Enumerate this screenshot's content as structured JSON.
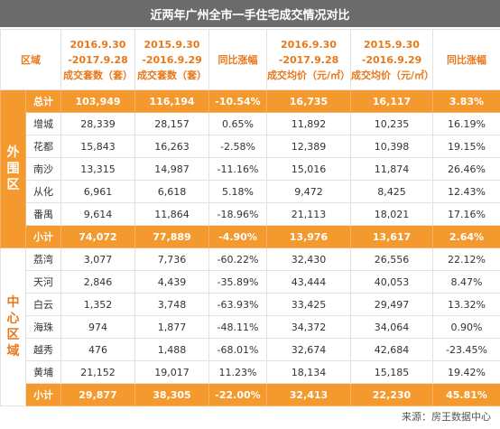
{
  "title": "近两年广州全市一手住宅成交情况对比",
  "headers": {
    "region": "区域",
    "col1_line1": "2016.9.30",
    "col1_line2": "-2017.9.28",
    "col1_line3": "成交套数（套）",
    "col2_line1": "2015.9.30",
    "col2_line2": "-2016.9.29",
    "col2_line3": "成交套数（套）",
    "col3": "同比涨幅",
    "col4_line1": "2016.9.30",
    "col4_line2": "-2017.9.28",
    "col4_line3": "成交均价（元/㎡）",
    "col5_line1": "2015.9.30",
    "col5_line2": "-2016.9.29",
    "col5_line3": "成交均价（元/㎡）",
    "col6": "同比涨幅"
  },
  "grand_total": {
    "name": "总计",
    "c1": "103,949",
    "c2": "116,194",
    "c3": "-10.54%",
    "c4": "16,735",
    "c5": "16,117",
    "c6": "3.83%"
  },
  "outer": {
    "label": "外围区",
    "rows": [
      {
        "name": "增城",
        "c1": "28,339",
        "c2": "28,157",
        "c3": "0.65%",
        "c4": "11,892",
        "c5": "10,235",
        "c6": "16.19%"
      },
      {
        "name": "花都",
        "c1": "15,843",
        "c2": "16,263",
        "c3": "-2.58%",
        "c4": "12,389",
        "c5": "10,398",
        "c6": "19.15%"
      },
      {
        "name": "南沙",
        "c1": "13,315",
        "c2": "14,987",
        "c3": "-11.16%",
        "c4": "15,016",
        "c5": "11,874",
        "c6": "26.46%"
      },
      {
        "name": "从化",
        "c1": "6,961",
        "c2": "6,618",
        "c3": "5.18%",
        "c4": "9,472",
        "c5": "8,425",
        "c6": "12.43%"
      },
      {
        "name": "番禺",
        "c1": "9,614",
        "c2": "11,864",
        "c3": "-18.96%",
        "c4": "21,113",
        "c5": "18,021",
        "c6": "17.16%"
      }
    ],
    "subtotal": {
      "name": "小计",
      "c1": "74,072",
      "c2": "77,889",
      "c3": "-4.90%",
      "c4": "13,976",
      "c5": "13,617",
      "c6": "2.64%"
    }
  },
  "center": {
    "label": "中心区域",
    "rows": [
      {
        "name": "荔湾",
        "c1": "3,077",
        "c2": "7,736",
        "c3": "-60.22%",
        "c4": "32,430",
        "c5": "26,556",
        "c6": "22.12%"
      },
      {
        "name": "天河",
        "c1": "2,846",
        "c2": "4,439",
        "c3": "-35.89%",
        "c4": "43,444",
        "c5": "40,053",
        "c6": "8.47%"
      },
      {
        "name": "白云",
        "c1": "1,352",
        "c2": "3,748",
        "c3": "-63.93%",
        "c4": "33,425",
        "c5": "29,497",
        "c6": "13.32%"
      },
      {
        "name": "海珠",
        "c1": "974",
        "c2": "1,877",
        "c3": "-48.11%",
        "c4": "34,372",
        "c5": "34,064",
        "c6": "0.90%"
      },
      {
        "name": "越秀",
        "c1": "476",
        "c2": "1,488",
        "c3": "-68.01%",
        "c4": "32,674",
        "c5": "42,684",
        "c6": "-23.45%"
      },
      {
        "name": "黄埔",
        "c1": "21,152",
        "c2": "19,017",
        "c3": "11.23%",
        "c4": "18,134",
        "c5": "15,185",
        "c6": "19.42%"
      }
    ],
    "subtotal": {
      "name": "小计",
      "c1": "29,877",
      "c2": "38,305",
      "c3": "-22.00%",
      "c4": "32,413",
      "c5": "22,230",
      "c6": "45.81%"
    }
  },
  "source": "来源：房王数据中心",
  "colors": {
    "accent": "#f4992e",
    "header_text": "#e8781a",
    "title_bg": "#6b6b6b"
  }
}
